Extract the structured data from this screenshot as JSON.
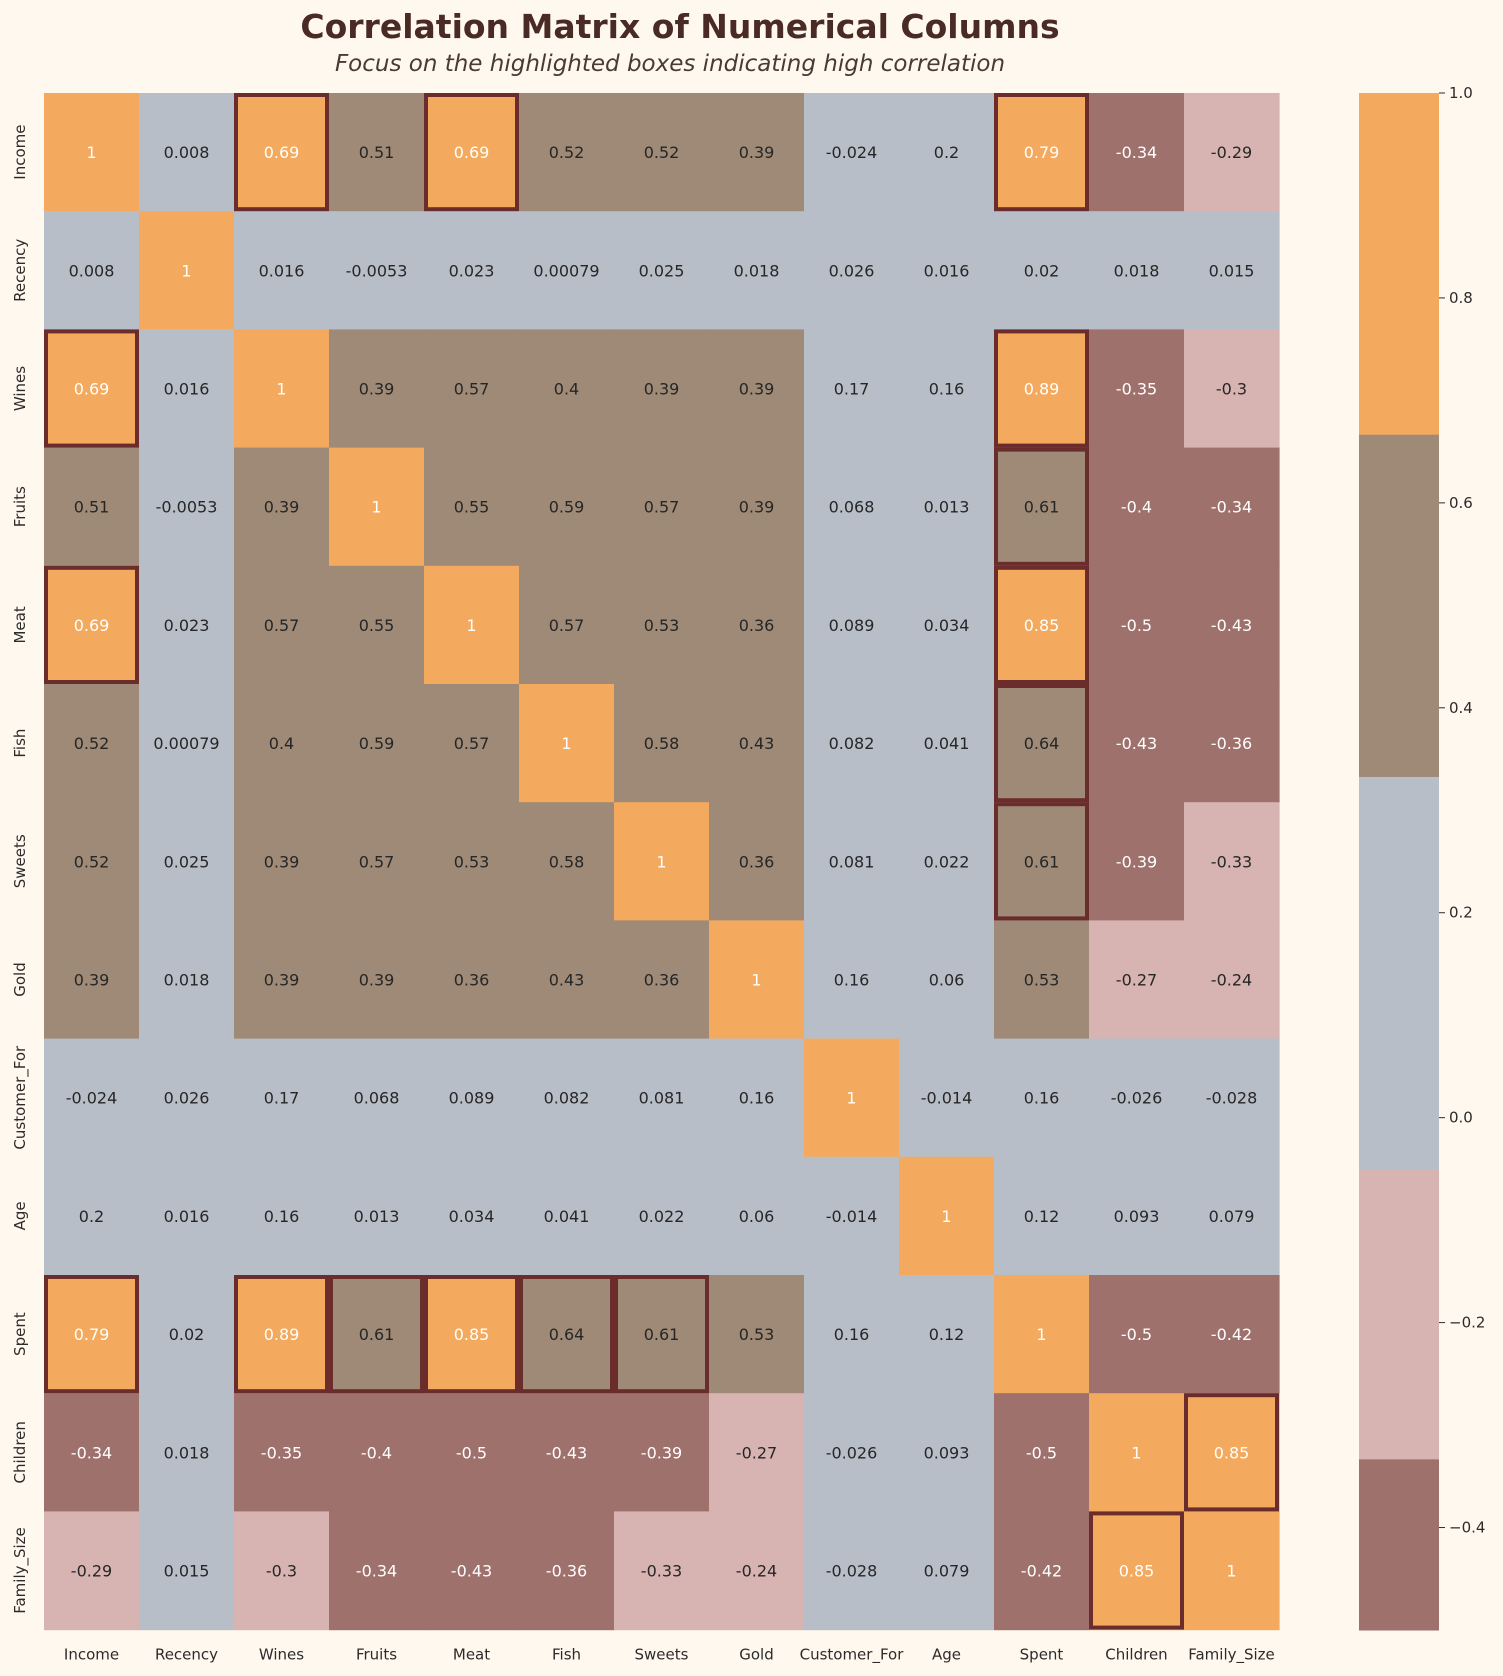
{
  "chart_data": {
    "type": "heatmap",
    "title": "Correlation Matrix of Numerical Columns",
    "subtitle": "Focus on the highlighted boxes indicating high correlation",
    "labels": [
      "Income",
      "Recency",
      "Wines",
      "Fruits",
      "Meat",
      "Fish",
      "Sweets",
      "Gold",
      "Customer_For",
      "Age",
      "Spent",
      "Children",
      "Family_Size"
    ],
    "values": [
      [
        1,
        0.008,
        0.69,
        0.51,
        0.69,
        0.52,
        0.52,
        0.39,
        -0.024,
        0.2,
        0.79,
        -0.34,
        -0.29
      ],
      [
        0.008,
        1,
        0.016,
        -0.0053,
        0.023,
        0.00079,
        0.025,
        0.018,
        0.026,
        0.016,
        0.02,
        0.018,
        0.015
      ],
      [
        0.69,
        0.016,
        1,
        0.39,
        0.57,
        0.4,
        0.39,
        0.39,
        0.17,
        0.16,
        0.89,
        -0.35,
        -0.3
      ],
      [
        0.51,
        -0.0053,
        0.39,
        1,
        0.55,
        0.59,
        0.57,
        0.39,
        0.068,
        0.013,
        0.61,
        -0.4,
        -0.34
      ],
      [
        0.69,
        0.023,
        0.57,
        0.55,
        1,
        0.57,
        0.53,
        0.36,
        0.089,
        0.034,
        0.85,
        -0.5,
        -0.43
      ],
      [
        0.52,
        0.00079,
        0.4,
        0.59,
        0.57,
        1,
        0.58,
        0.43,
        0.082,
        0.041,
        0.64,
        -0.43,
        -0.36
      ],
      [
        0.52,
        0.025,
        0.39,
        0.57,
        0.53,
        0.58,
        1,
        0.36,
        0.081,
        0.022,
        0.61,
        -0.39,
        -0.33
      ],
      [
        0.39,
        0.018,
        0.39,
        0.39,
        0.36,
        0.43,
        0.36,
        1,
        0.16,
        0.06,
        0.53,
        -0.27,
        -0.24
      ],
      [
        -0.024,
        0.026,
        0.17,
        0.068,
        0.089,
        0.082,
        0.081,
        0.16,
        1,
        -0.014,
        0.16,
        -0.026,
        -0.028
      ],
      [
        0.2,
        0.016,
        0.16,
        0.013,
        0.034,
        0.041,
        0.022,
        0.06,
        -0.014,
        1,
        0.12,
        0.093,
        0.079
      ],
      [
        0.79,
        0.02,
        0.89,
        0.61,
        0.85,
        0.64,
        0.61,
        0.53,
        0.16,
        0.12,
        1,
        -0.5,
        -0.42
      ],
      [
        -0.34,
        0.018,
        -0.35,
        -0.4,
        -0.5,
        -0.43,
        -0.39,
        -0.27,
        -0.026,
        0.093,
        -0.5,
        1,
        0.85
      ],
      [
        -0.29,
        0.015,
        -0.3,
        -0.34,
        -0.43,
        -0.36,
        -0.33,
        -0.24,
        -0.028,
        0.079,
        -0.42,
        0.85,
        1
      ]
    ],
    "highlight_threshold": 0.6,
    "colormap": {
      "vmin": -0.5,
      "vmax": 1.0,
      "bins": [
        {
          "min": -0.5,
          "max": -0.333,
          "color": "#9e716d"
        },
        {
          "min": -0.333,
          "max": -0.05,
          "color": "#d7b3b1"
        },
        {
          "min": -0.05,
          "max": 0.333,
          "color": "#b8bec8"
        },
        {
          "min": 0.333,
          "max": 0.667,
          "color": "#9e8a76"
        },
        {
          "min": 0.667,
          "max": 1.0,
          "color": "#f3aa5e"
        }
      ]
    },
    "colorbar_ticks": [
      "1.0",
      "0.8",
      "0.6",
      "0.4",
      "0.2",
      "0.0",
      "−0.2",
      "−0.4"
    ],
    "colorbar_tick_values": [
      1.0,
      0.8,
      0.6,
      0.4,
      0.2,
      0.0,
      -0.2,
      -0.4
    ],
    "highlight_color": "#6b2c2c",
    "background": "#fff8ee"
  }
}
